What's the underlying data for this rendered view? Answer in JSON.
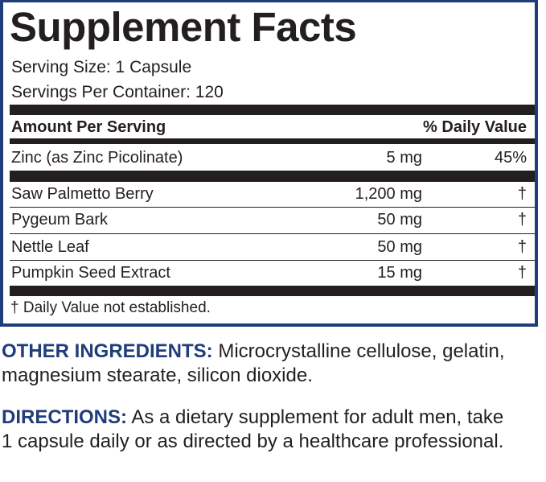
{
  "panel": {
    "title": "Supplement Facts",
    "serving_size": "Serving Size: 1 Capsule",
    "servings_per_container": "Servings Per Container: 120",
    "header_left": "Amount Per Serving",
    "header_right": "% Daily Value",
    "rows": [
      {
        "name": "Zinc (as Zinc Picolinate)",
        "amount": "5 mg",
        "dv": "45%"
      },
      {
        "name": "Saw Palmetto Berry",
        "amount": "1,200 mg",
        "dv": "†"
      },
      {
        "name": "Pygeum Bark",
        "amount": "50 mg",
        "dv": "†"
      },
      {
        "name": "Nettle Leaf",
        "amount": "50 mg",
        "dv": "†"
      },
      {
        "name": "Pumpkin Seed Extract",
        "amount": "15 mg",
        "dv": "†"
      }
    ],
    "footnote": "† Daily Value not established."
  },
  "other_ingredients": {
    "label": "OTHER INGREDIENTS:",
    "text": " Microcrystalline cellulose, gelatin, magnesium stearate, silicon dioxide."
  },
  "directions": {
    "label": "DIRECTIONS:",
    "text": " As a dietary supplement for adult men, take 1 capsule daily or as directed by a healthcare professional."
  },
  "colors": {
    "accent": "#1f3d7a",
    "text": "#231f20"
  }
}
